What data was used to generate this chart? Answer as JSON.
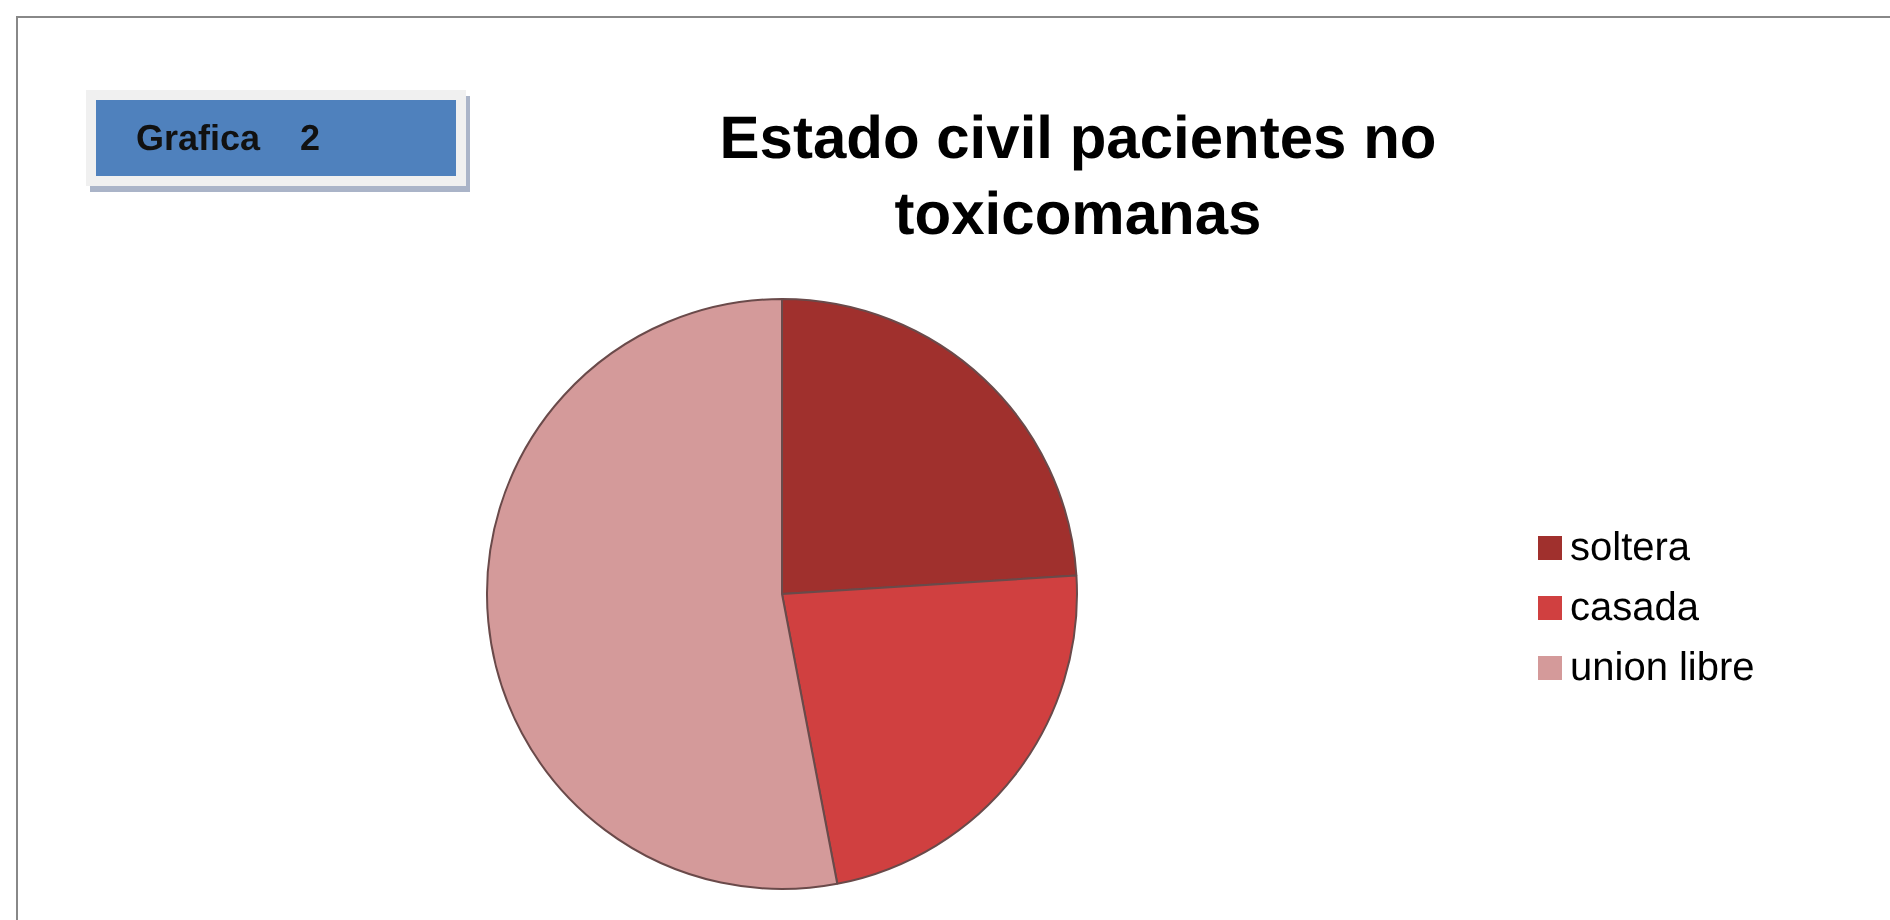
{
  "chart_data": {
    "type": "pie",
    "title": "Estado civil pacientes no toxicomanas",
    "annotations": [
      "Grafica    2"
    ],
    "categories": [
      "soltera",
      "casada",
      "union libre"
    ],
    "values": [
      24,
      23,
      53
    ],
    "colors": [
      "#a0302d",
      "#d04040",
      "#d49a9a"
    ],
    "legend": "right"
  }
}
